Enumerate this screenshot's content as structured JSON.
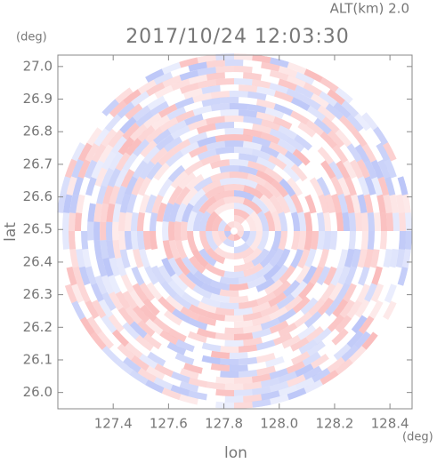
{
  "chart_data": {
    "type": "radar-field",
    "title": "2017/10/24 12:03:30",
    "subtitle": "ALT(km) 2.0",
    "x_label": "lon",
    "y_label": "lat",
    "x_unit": "(deg)",
    "y_unit": "(deg)",
    "xlim": [
      127.2,
      128.48
    ],
    "ylim": [
      25.95,
      27.035
    ],
    "xticks": [
      {
        "value": 127.4,
        "label": "127.4"
      },
      {
        "value": 127.6,
        "label": "127.6"
      },
      {
        "value": 127.8,
        "label": "127.8"
      },
      {
        "value": 128,
        "label": "128.0"
      },
      {
        "value": 128.2,
        "label": "128.2"
      },
      {
        "value": 128.4,
        "label": "128.4"
      }
    ],
    "yticks": [
      {
        "value": 26,
        "label": "26.0"
      },
      26.1,
      26.2,
      26.3,
      26.4,
      26.5,
      26.6,
      26.7,
      26.8,
      26.9,
      {
        "value": 27,
        "label": "27.0"
      }
    ]
  }
}
